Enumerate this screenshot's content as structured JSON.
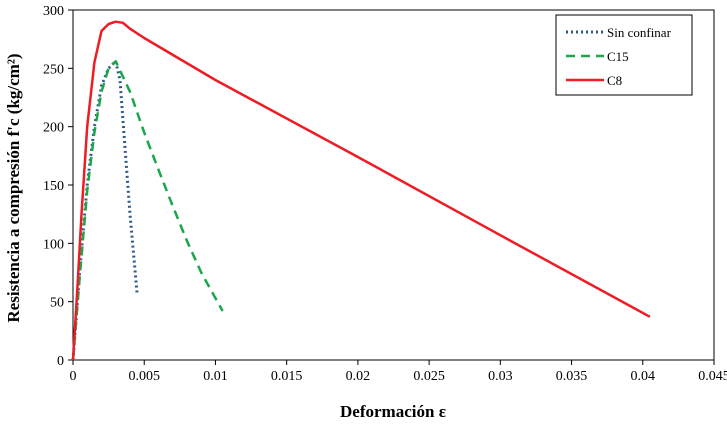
{
  "chart_data": {
    "type": "line",
    "xlabel": "Deformación ε",
    "ylabel": "Resistencia a compresión f'c  (kg/cm²)",
    "xlim": [
      0,
      0.045
    ],
    "ylim": [
      0,
      300
    ],
    "x_ticks": [
      0,
      0.005,
      0.01,
      0.015,
      0.02,
      0.025,
      0.03,
      0.035,
      0.04,
      0.045
    ],
    "x_tick_labels": [
      "0",
      "0.005",
      "0.01",
      "0.015",
      "0.02",
      "0.025",
      "0.03",
      "0.035",
      "0.04",
      "0.045"
    ],
    "y_ticks": [
      0,
      50,
      100,
      150,
      200,
      250,
      300
    ],
    "y_tick_labels": [
      "0",
      "50",
      "100",
      "150",
      "200",
      "250",
      "300"
    ],
    "grid": false,
    "legend_position": "top-right",
    "series": [
      {
        "name": "Sin confinar",
        "color": "#2e5a87",
        "style": "dotted",
        "points": [
          [
            0,
            0
          ],
          [
            0.0005,
            80
          ],
          [
            0.001,
            150
          ],
          [
            0.0015,
            200
          ],
          [
            0.002,
            235
          ],
          [
            0.0025,
            250
          ],
          [
            0.003,
            256
          ],
          [
            0.0033,
            240
          ],
          [
            0.0036,
            190
          ],
          [
            0.004,
            125
          ],
          [
            0.0045,
            57
          ]
        ]
      },
      {
        "name": "C15",
        "color": "#1aa64b",
        "style": "dashed",
        "points": [
          [
            0,
            0
          ],
          [
            0.0005,
            75
          ],
          [
            0.001,
            145
          ],
          [
            0.0015,
            195
          ],
          [
            0.002,
            230
          ],
          [
            0.0025,
            250
          ],
          [
            0.003,
            256
          ],
          [
            0.004,
            230
          ],
          [
            0.005,
            195
          ],
          [
            0.006,
            163
          ],
          [
            0.007,
            132
          ],
          [
            0.008,
            102
          ],
          [
            0.009,
            75
          ],
          [
            0.0105,
            42
          ]
        ]
      },
      {
        "name": "C8",
        "color": "#ee1c25",
        "style": "solid",
        "points": [
          [
            0,
            0
          ],
          [
            0.0003,
            60
          ],
          [
            0.0006,
            125
          ],
          [
            0.001,
            200
          ],
          [
            0.0015,
            255
          ],
          [
            0.002,
            282
          ],
          [
            0.0025,
            288
          ],
          [
            0.003,
            290
          ],
          [
            0.0035,
            289
          ],
          [
            0.004,
            284
          ],
          [
            0.005,
            276
          ],
          [
            0.01,
            240
          ],
          [
            0.02,
            174
          ],
          [
            0.03,
            107
          ],
          [
            0.0405,
            37
          ]
        ]
      }
    ]
  }
}
